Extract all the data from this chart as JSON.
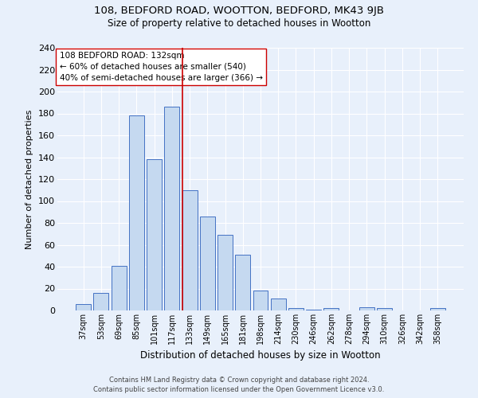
{
  "title": "108, BEDFORD ROAD, WOOTTON, BEDFORD, MK43 9JB",
  "subtitle": "Size of property relative to detached houses in Wootton",
  "xlabel": "Distribution of detached houses by size in Wootton",
  "ylabel": "Number of detached properties",
  "footnote1": "Contains HM Land Registry data © Crown copyright and database right 2024.",
  "footnote2": "Contains public sector information licensed under the Open Government Licence v3.0.",
  "bar_labels": [
    "37sqm",
    "53sqm",
    "69sqm",
    "85sqm",
    "101sqm",
    "117sqm",
    "133sqm",
    "149sqm",
    "165sqm",
    "181sqm",
    "198sqm",
    "214sqm",
    "230sqm",
    "246sqm",
    "262sqm",
    "278sqm",
    "294sqm",
    "310sqm",
    "326sqm",
    "342sqm",
    "358sqm"
  ],
  "bar_values": [
    6,
    16,
    41,
    178,
    138,
    186,
    110,
    86,
    69,
    51,
    18,
    11,
    2,
    1,
    2,
    0,
    3,
    2,
    0,
    0,
    2
  ],
  "bar_color": "#c5d9f0",
  "bar_edge_color": "#4472c4",
  "bg_color": "#e8f0fb",
  "grid_color": "#ffffff",
  "vline_index": 6,
  "vline_color": "#cc0000",
  "annotation_text": "108 BEDFORD ROAD: 132sqm\n← 60% of detached houses are smaller (540)\n40% of semi-detached houses are larger (366) →",
  "annotation_box_color": "#ffffff",
  "annotation_box_edge": "#cc0000",
  "ylim": [
    0,
    240
  ],
  "yticks": [
    0,
    20,
    40,
    60,
    80,
    100,
    120,
    140,
    160,
    180,
    200,
    220,
    240
  ]
}
